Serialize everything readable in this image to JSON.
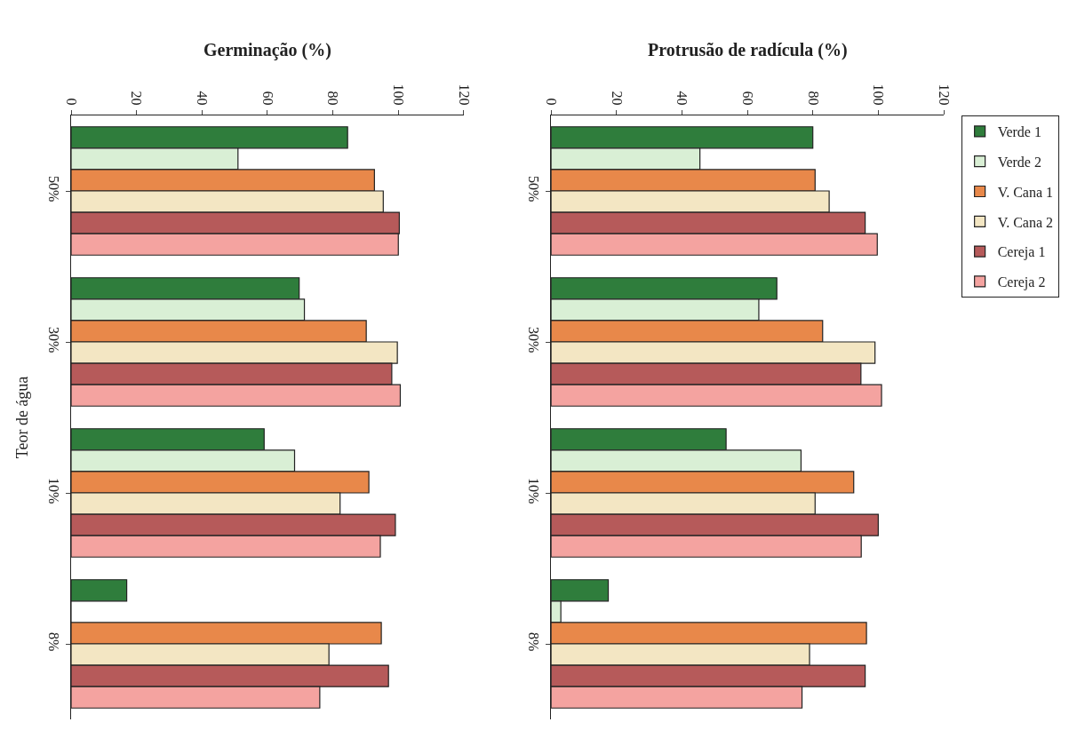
{
  "chart_data": [
    {
      "type": "bar",
      "orientation": "horizontal",
      "title": "Germinação (%)",
      "ylabel": "Teor de água",
      "categories": [
        "50%",
        "30%",
        "10%",
        "8%"
      ],
      "xlim": [
        0,
        120
      ],
      "xticks": [
        0,
        20,
        40,
        60,
        80,
        100,
        120
      ],
      "legend": "right",
      "series": [
        {
          "name": "Verde 1",
          "color": "#2f7d3c",
          "values": [
            84.5,
            69.7,
            59,
            17
          ]
        },
        {
          "name": "Verde 2",
          "color": "#d9efd5",
          "values": [
            51,
            71.3,
            68.3,
            0
          ]
        },
        {
          "name": "V. Cana 1",
          "color": "#e8884a",
          "values": [
            92.7,
            90.2,
            91,
            94.8
          ]
        },
        {
          "name": "V. Cana 2",
          "color": "#f3e6c3",
          "values": [
            95.4,
            99.7,
            82.2,
            78.8
          ]
        },
        {
          "name": "Cereja 1",
          "color": "#b65a5a",
          "values": [
            100.3,
            98,
            99.1,
            97
          ]
        },
        {
          "name": "Cereja 2",
          "color": "#f4a3a0",
          "values": [
            100,
            100.6,
            94.5,
            76
          ]
        }
      ]
    },
    {
      "type": "bar",
      "orientation": "horizontal",
      "title": "Protrusão de radícula (%)",
      "categories": [
        "50%",
        "30%",
        "10%",
        "8%"
      ],
      "xlim": [
        0,
        120
      ],
      "xticks": [
        0,
        20,
        40,
        60,
        80,
        100,
        120
      ],
      "legend": "right",
      "series": [
        {
          "name": "Verde 1",
          "color": "#2f7d3c",
          "values": [
            80,
            69,
            53.5,
            17.5
          ]
        },
        {
          "name": "Verde 2",
          "color": "#d9efd5",
          "values": [
            45.5,
            63.5,
            76.4,
            3
          ]
        },
        {
          "name": "V. Cana 1",
          "color": "#e8884a",
          "values": [
            80.7,
            83,
            92.5,
            96.4
          ]
        },
        {
          "name": "V. Cana 2",
          "color": "#f3e6c3",
          "values": [
            85,
            99,
            80.7,
            79
          ]
        },
        {
          "name": "Cereja 1",
          "color": "#b65a5a",
          "values": [
            96,
            94.7,
            100,
            96
          ]
        },
        {
          "name": "Cereja 2",
          "color": "#f4a3a0",
          "values": [
            99.7,
            101,
            94.8,
            76.7
          ]
        }
      ]
    }
  ]
}
